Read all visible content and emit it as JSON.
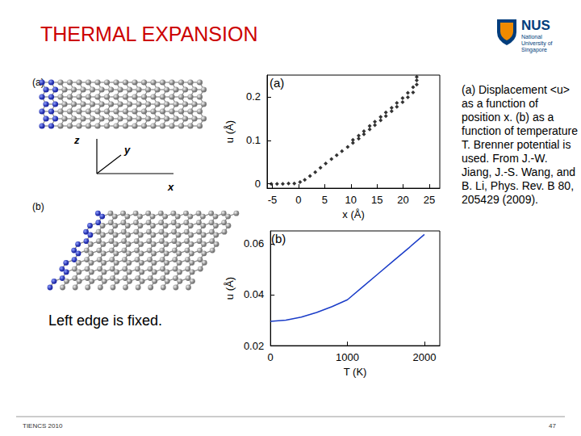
{
  "slide": {
    "title": "THERMAL EXPANSION",
    "logo": {
      "abbr": "NUS",
      "name": "National University of Singapore"
    },
    "caption": "(a) Displacement <u> as a function of position x. (b) as a function of temperature T. Brenner potential is used. From J.-W. Jiang, J.-S. Wang, and B. Li, Phys. Rev. B 80, 205429 (2009).",
    "note": "Left edge is fixed.",
    "footer": "TIENCS 2010",
    "page": "47",
    "figure_labels": [
      "(a)",
      "(b)"
    ],
    "axes_labels": [
      "z",
      "y",
      "x"
    ]
  },
  "chart_data": [
    {
      "type": "scatter",
      "panel": "(a)",
      "xlabel": "x (Å)",
      "ylabel": "u (Å)",
      "color": "#000000",
      "marker": "diamond",
      "x": [
        -5.2,
        -4.1,
        -3.0,
        -1.9,
        -0.8,
        0.3,
        1.2,
        2.2,
        3.2,
        4.2,
        5.2,
        6.3,
        7.3,
        8.3,
        9.4,
        10.4,
        10.4,
        11.5,
        11.5,
        12.5,
        12.5,
        13.6,
        13.6,
        14.6,
        14.6,
        15.7,
        15.7,
        16.7,
        16.7,
        17.8,
        17.8,
        18.8,
        18.8,
        19.9,
        19.9,
        20.9,
        20.9,
        21.9,
        21.9,
        22.6,
        22.6,
        22.6
      ],
      "values": [
        0,
        0,
        0,
        0.001,
        0.001,
        0.004,
        0.009,
        0.018,
        0.027,
        0.037,
        0.047,
        0.057,
        0.066,
        0.075,
        0.085,
        0.094,
        0.101,
        0.104,
        0.111,
        0.114,
        0.121,
        0.125,
        0.133,
        0.135,
        0.143,
        0.146,
        0.154,
        0.156,
        0.164,
        0.167,
        0.175,
        0.177,
        0.186,
        0.188,
        0.197,
        0.199,
        0.209,
        0.21,
        0.222,
        0.228,
        0.238,
        0.246
      ],
      "xlim": [
        -6,
        27
      ],
      "xticks": [
        -5,
        0,
        5,
        10,
        15,
        20,
        25
      ],
      "ylim": [
        -0.01,
        0.25
      ],
      "yticks": [
        0,
        0.1,
        0.2
      ]
    },
    {
      "type": "line",
      "panel": "(b)",
      "xlabel": "T (K)",
      "ylabel": "u (Å)",
      "color": "#1a3cc8",
      "x": [
        0,
        200,
        400,
        600,
        800,
        1000,
        1200,
        1400,
        1600,
        1800,
        2000
      ],
      "values": [
        0.0295,
        0.03,
        0.0312,
        0.033,
        0.0353,
        0.038,
        0.0431,
        0.0482,
        0.0533,
        0.0584,
        0.0636
      ],
      "xlim": [
        0,
        2200
      ],
      "xticks": [
        0,
        1000,
        2000
      ],
      "ylim": [
        0.02,
        0.065
      ],
      "yticks": [
        0.02,
        0.04,
        0.06
      ]
    }
  ]
}
